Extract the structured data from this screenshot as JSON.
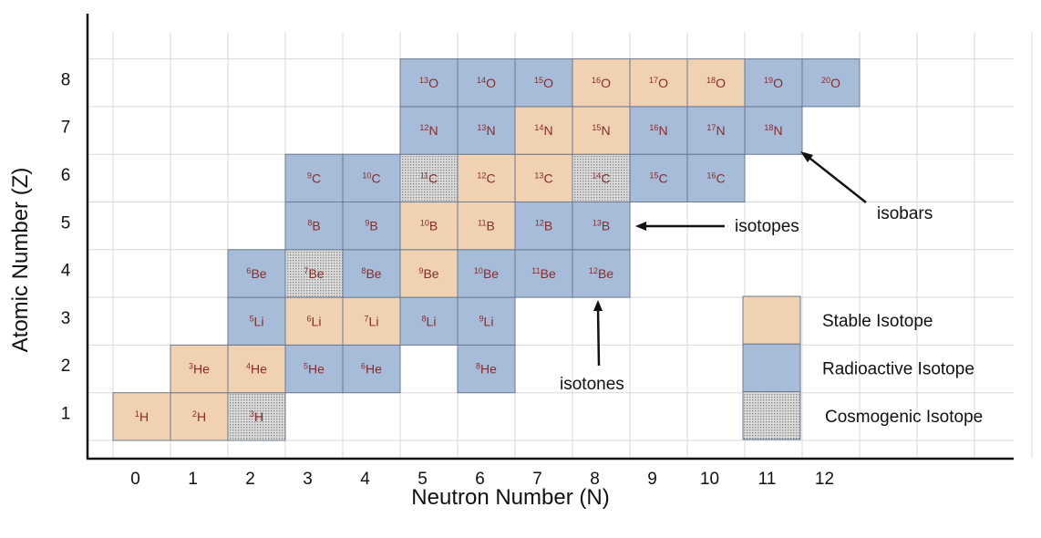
{
  "colors": {
    "stable": "#f0d1b1",
    "radioactive": "#a7bcd9",
    "cosmogenic": "#c9c9c9",
    "cell_border": "#6a7a90",
    "cell_text": "#8b2a2a",
    "grid": "#d8d8d8",
    "axis": "#111111"
  },
  "chart_data": {
    "type": "table",
    "xlabel": "Neutron Number (N)",
    "ylabel": "Atomic Number (Z)",
    "x_ticks": [
      "0",
      "1",
      "2",
      "3",
      "4",
      "5",
      "6",
      "7",
      "8",
      "9",
      "10",
      "11",
      "12"
    ],
    "y_ticks": [
      "1",
      "2",
      "3",
      "4",
      "5",
      "6",
      "7",
      "8"
    ],
    "cells": [
      {
        "n": 0,
        "z": 1,
        "mass": "1",
        "symbol": "H",
        "kind": "stable"
      },
      {
        "n": 1,
        "z": 1,
        "mass": "2",
        "symbol": "H",
        "kind": "stable"
      },
      {
        "n": 2,
        "z": 1,
        "mass": "3",
        "symbol": "H",
        "kind": "cosmogenic"
      },
      {
        "n": 1,
        "z": 2,
        "mass": "3",
        "symbol": "He",
        "kind": "stable"
      },
      {
        "n": 2,
        "z": 2,
        "mass": "4",
        "symbol": "He",
        "kind": "stable"
      },
      {
        "n": 3,
        "z": 2,
        "mass": "5",
        "symbol": "He",
        "kind": "radioactive"
      },
      {
        "n": 4,
        "z": 2,
        "mass": "6",
        "symbol": "He",
        "kind": "radioactive"
      },
      {
        "n": 6,
        "z": 2,
        "mass": "8",
        "symbol": "He",
        "kind": "radioactive"
      },
      {
        "n": 2,
        "z": 3,
        "mass": "5",
        "symbol": "Li",
        "kind": "radioactive"
      },
      {
        "n": 3,
        "z": 3,
        "mass": "6",
        "symbol": "Li",
        "kind": "stable"
      },
      {
        "n": 4,
        "z": 3,
        "mass": "7",
        "symbol": "Li",
        "kind": "stable"
      },
      {
        "n": 5,
        "z": 3,
        "mass": "8",
        "symbol": "Li",
        "kind": "radioactive"
      },
      {
        "n": 6,
        "z": 3,
        "mass": "9",
        "symbol": "Li",
        "kind": "radioactive"
      },
      {
        "n": 2,
        "z": 4,
        "mass": "6",
        "symbol": "Be",
        "kind": "radioactive"
      },
      {
        "n": 3,
        "z": 4,
        "mass": "7",
        "symbol": "Be",
        "kind": "cosmogenic"
      },
      {
        "n": 4,
        "z": 4,
        "mass": "8",
        "symbol": "Be",
        "kind": "radioactive"
      },
      {
        "n": 5,
        "z": 4,
        "mass": "9",
        "symbol": "Be",
        "kind": "stable"
      },
      {
        "n": 6,
        "z": 4,
        "mass": "10",
        "symbol": "Be",
        "kind": "radioactive"
      },
      {
        "n": 7,
        "z": 4,
        "mass": "11",
        "symbol": "Be",
        "kind": "radioactive"
      },
      {
        "n": 8,
        "z": 4,
        "mass": "12",
        "symbol": "Be",
        "kind": "radioactive"
      },
      {
        "n": 3,
        "z": 5,
        "mass": "8",
        "symbol": "B",
        "kind": "radioactive"
      },
      {
        "n": 4,
        "z": 5,
        "mass": "9",
        "symbol": "B",
        "kind": "radioactive"
      },
      {
        "n": 5,
        "z": 5,
        "mass": "10",
        "symbol": "B",
        "kind": "stable"
      },
      {
        "n": 6,
        "z": 5,
        "mass": "11",
        "symbol": "B",
        "kind": "stable"
      },
      {
        "n": 7,
        "z": 5,
        "mass": "12",
        "symbol": "B",
        "kind": "radioactive"
      },
      {
        "n": 8,
        "z": 5,
        "mass": "13",
        "symbol": "B",
        "kind": "radioactive"
      },
      {
        "n": 3,
        "z": 6,
        "mass": "9",
        "symbol": "C",
        "kind": "radioactive"
      },
      {
        "n": 4,
        "z": 6,
        "mass": "10",
        "symbol": "C",
        "kind": "radioactive"
      },
      {
        "n": 5,
        "z": 6,
        "mass": "11",
        "symbol": "C",
        "kind": "cosmogenic"
      },
      {
        "n": 6,
        "z": 6,
        "mass": "12",
        "symbol": "C",
        "kind": "stable"
      },
      {
        "n": 7,
        "z": 6,
        "mass": "13",
        "symbol": "C",
        "kind": "stable"
      },
      {
        "n": 8,
        "z": 6,
        "mass": "14",
        "symbol": "C",
        "kind": "cosmogenic"
      },
      {
        "n": 9,
        "z": 6,
        "mass": "15",
        "symbol": "C",
        "kind": "radioactive"
      },
      {
        "n": 10,
        "z": 6,
        "mass": "16",
        "symbol": "C",
        "kind": "radioactive"
      },
      {
        "n": 5,
        "z": 7,
        "mass": "12",
        "symbol": "N",
        "kind": "radioactive"
      },
      {
        "n": 6,
        "z": 7,
        "mass": "13",
        "symbol": "N",
        "kind": "radioactive"
      },
      {
        "n": 7,
        "z": 7,
        "mass": "14",
        "symbol": "N",
        "kind": "stable"
      },
      {
        "n": 8,
        "z": 7,
        "mass": "15",
        "symbol": "N",
        "kind": "stable"
      },
      {
        "n": 9,
        "z": 7,
        "mass": "16",
        "symbol": "N",
        "kind": "radioactive"
      },
      {
        "n": 10,
        "z": 7,
        "mass": "17",
        "symbol": "N",
        "kind": "radioactive"
      },
      {
        "n": 11,
        "z": 7,
        "mass": "18",
        "symbol": "N",
        "kind": "radioactive"
      },
      {
        "n": 5,
        "z": 8,
        "mass": "13",
        "symbol": "O",
        "kind": "radioactive"
      },
      {
        "n": 6,
        "z": 8,
        "mass": "14",
        "symbol": "O",
        "kind": "radioactive"
      },
      {
        "n": 7,
        "z": 8,
        "mass": "15",
        "symbol": "O",
        "kind": "radioactive"
      },
      {
        "n": 8,
        "z": 8,
        "mass": "16",
        "symbol": "O",
        "kind": "stable"
      },
      {
        "n": 9,
        "z": 8,
        "mass": "17",
        "symbol": "O",
        "kind": "stable"
      },
      {
        "n": 10,
        "z": 8,
        "mass": "18",
        "symbol": "O",
        "kind": "stable"
      },
      {
        "n": 11,
        "z": 8,
        "mass": "19",
        "symbol": "O",
        "kind": "radioactive"
      },
      {
        "n": 12,
        "z": 8,
        "mass": "20",
        "symbol": "O",
        "kind": "radioactive"
      }
    ],
    "legend": [
      {
        "kind": "stable",
        "label": "Stable Isotope"
      },
      {
        "kind": "radioactive",
        "label": "Radioactive Isotope"
      },
      {
        "kind": "cosmogenic",
        "label": "Cosmogenic Isotope"
      }
    ],
    "annotations": [
      {
        "id": "isobars",
        "label": "isobars"
      },
      {
        "id": "isotopes",
        "label": "isotopes"
      },
      {
        "id": "isotones",
        "label": "isotones"
      }
    ]
  }
}
